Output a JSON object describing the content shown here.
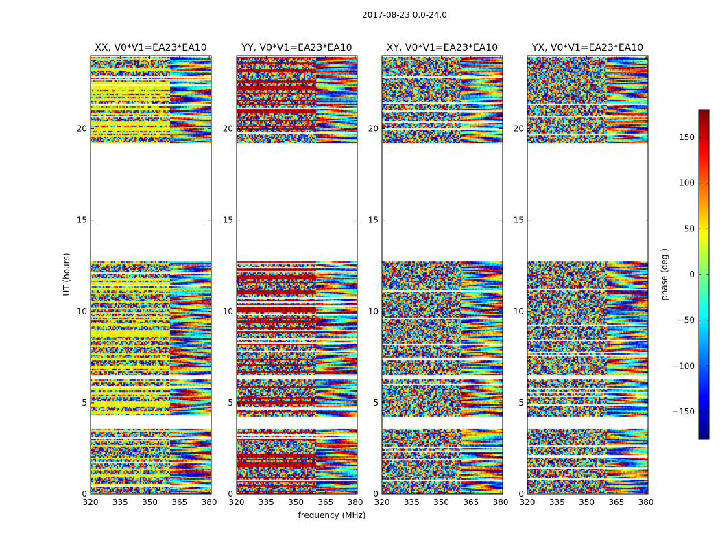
{
  "suptitle": "2017-08-23 0.0-24.0",
  "chart_data": {
    "type": "heatmap",
    "xlabel": "frequency (MHz)",
    "ylabel": "UT (hours)",
    "xlim": [
      320,
      381
    ],
    "ylim": [
      0,
      24
    ],
    "xticks": [
      320,
      335,
      350,
      365,
      380
    ],
    "xticklabels": [
      "320",
      "335",
      "350",
      "365",
      "380"
    ],
    "yticks": [
      0,
      5,
      10,
      15,
      20
    ],
    "yticklabels": [
      "0",
      "5",
      "10",
      "15",
      "20"
    ],
    "colorbar": {
      "label": "phase (deg.)",
      "range": [
        -180,
        180
      ],
      "ticks": [
        150,
        100,
        50,
        0,
        -50,
        -100,
        -150
      ],
      "ticklabels": [
        "150",
        "100",
        "50",
        "0",
        "−50",
        "−100",
        "−150"
      ],
      "colormap": "jet",
      "stops": [
        "#00007f",
        "#0000ff",
        "#007fff",
        "#00ffff",
        "#7fff7f",
        "#ffff00",
        "#ff7f00",
        "#ff0000",
        "#7f0000"
      ]
    },
    "panels": [
      {
        "title": "XX, V0*V1=EA23*EA10",
        "pol": "XX"
      },
      {
        "title": "YY, V0*V1=EA23*EA10",
        "pol": "YY"
      },
      {
        "title": "XY, V0*V1=EA23*EA10",
        "pol": "XY"
      },
      {
        "title": "YX, V0*V1=EA23*EA10",
        "pol": "YX"
      }
    ],
    "data_time_ranges_hours": [
      [
        0,
        3.6
      ],
      [
        4.3,
        6.3
      ],
      [
        6.5,
        12.8
      ],
      [
        19.2,
        24
      ]
    ],
    "blank_time_ranges_hours": [
      [
        3.6,
        4.3
      ],
      [
        12.8,
        19.2
      ]
    ],
    "coherent_freq_start_mhz": 360
  }
}
